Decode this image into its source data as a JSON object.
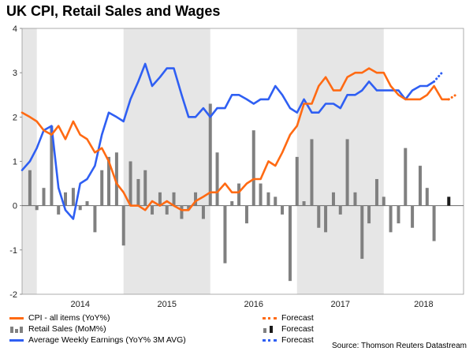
{
  "title": "UK CPI, Retail Sales and Wages",
  "source": "Source: Thomson Reuters Datastream",
  "legend": {
    "cpi": "CPI - all items (YoY%)",
    "retail": "Retail Sales (MoM%)",
    "awe": "Average Weekly Earnings (YoY% 3M AVG)",
    "forecast1": "Forecast",
    "forecast2": "Forecast",
    "forecast3": "Forecast"
  },
  "colors": {
    "cpi": "#ff6a13",
    "retail": "#808080",
    "retail_forecast": "#1a1a1a",
    "awe": "#2f5ff3",
    "shade": "#e6e6e6"
  },
  "chart_data": {
    "type": "line",
    "ylim": [
      -2,
      4
    ],
    "yticks": [
      -2,
      -1,
      0,
      1,
      2,
      3,
      4
    ],
    "x_range": [
      2013.83,
      2018.92
    ],
    "shaded_years": [
      [
        2013.83,
        2014.0
      ],
      [
        2015.0,
        2016.0
      ],
      [
        2017.0,
        2018.0
      ]
    ],
    "year_labels": [
      "2014",
      "2015",
      "2016",
      "2017",
      "2018"
    ],
    "series": [
      {
        "name": "CPI - all items (YoY%)",
        "x": [
          2013.83,
          2013.92,
          2014.0,
          2014.08,
          2014.17,
          2014.25,
          2014.33,
          2014.42,
          2014.5,
          2014.58,
          2014.67,
          2014.75,
          2014.83,
          2014.92,
          2015.0,
          2015.08,
          2015.17,
          2015.25,
          2015.33,
          2015.42,
          2015.5,
          2015.58,
          2015.67,
          2015.75,
          2015.83,
          2015.92,
          2016.0,
          2016.08,
          2016.17,
          2016.25,
          2016.33,
          2016.42,
          2016.5,
          2016.58,
          2016.67,
          2016.75,
          2016.83,
          2016.92,
          2017.0,
          2017.08,
          2017.17,
          2017.25,
          2017.33,
          2017.42,
          2017.5,
          2017.58,
          2017.67,
          2017.75,
          2017.83,
          2017.92,
          2018.0,
          2018.08,
          2018.17,
          2018.25,
          2018.33,
          2018.42,
          2018.5,
          2018.58,
          2018.67,
          2018.75
        ],
        "values": [
          2.1,
          2.0,
          1.9,
          1.7,
          1.6,
          1.8,
          1.5,
          1.9,
          1.6,
          1.5,
          1.2,
          1.3,
          1.0,
          0.5,
          0.3,
          0.0,
          0.0,
          -0.1,
          0.1,
          0.0,
          0.1,
          0.0,
          -0.1,
          -0.1,
          0.1,
          0.2,
          0.3,
          0.3,
          0.5,
          0.3,
          0.3,
          0.5,
          0.6,
          0.6,
          1.0,
          0.9,
          1.2,
          1.6,
          1.8,
          2.3,
          2.3,
          2.7,
          2.9,
          2.6,
          2.6,
          2.9,
          3.0,
          3.0,
          3.1,
          3.0,
          3.0,
          2.7,
          2.5,
          2.4,
          2.4,
          2.4,
          2.5,
          2.7,
          2.4,
          2.4
        ]
      },
      {
        "name": "CPI Forecast",
        "x": [
          2018.75,
          2018.83
        ],
        "values": [
          2.4,
          2.5
        ]
      },
      {
        "name": "Average Weekly Earnings (YoY% 3M AVG)",
        "x": [
          2013.83,
          2013.92,
          2014.0,
          2014.08,
          2014.17,
          2014.25,
          2014.33,
          2014.42,
          2014.5,
          2014.58,
          2014.67,
          2014.75,
          2014.83,
          2014.92,
          2015.0,
          2015.08,
          2015.17,
          2015.25,
          2015.33,
          2015.42,
          2015.5,
          2015.58,
          2015.67,
          2015.75,
          2015.83,
          2015.92,
          2016.0,
          2016.08,
          2016.17,
          2016.25,
          2016.33,
          2016.42,
          2016.5,
          2016.58,
          2016.67,
          2016.75,
          2016.83,
          2016.92,
          2017.0,
          2017.08,
          2017.17,
          2017.25,
          2017.33,
          2017.42,
          2017.5,
          2017.58,
          2017.67,
          2017.75,
          2017.83,
          2017.92,
          2018.0,
          2018.08,
          2018.17,
          2018.25,
          2018.33,
          2018.42,
          2018.5,
          2018.58
        ],
        "values": [
          0.8,
          1.0,
          1.3,
          1.7,
          1.8,
          0.4,
          -0.1,
          -0.3,
          0.5,
          0.6,
          0.9,
          1.6,
          2.1,
          2.0,
          1.9,
          2.4,
          2.8,
          3.2,
          2.7,
          2.9,
          3.1,
          3.1,
          2.5,
          2.0,
          2.0,
          2.2,
          2.0,
          2.2,
          2.2,
          2.5,
          2.5,
          2.4,
          2.3,
          2.4,
          2.4,
          2.7,
          2.5,
          2.2,
          2.1,
          2.4,
          2.1,
          2.1,
          2.3,
          2.3,
          2.2,
          2.5,
          2.5,
          2.6,
          2.8,
          2.6,
          2.6,
          2.6,
          2.6,
          2.4,
          2.6,
          2.7,
          2.7,
          2.8
        ]
      },
      {
        "name": "AWE Forecast",
        "x": [
          2018.58,
          2018.67
        ],
        "values": [
          2.8,
          3.0
        ]
      },
      {
        "name": "Retail Sales (MoM%)",
        "type": "bar",
        "x": [
          2013.92,
          2014.0,
          2014.08,
          2014.17,
          2014.25,
          2014.33,
          2014.42,
          2014.5,
          2014.58,
          2014.67,
          2014.75,
          2014.83,
          2014.92,
          2015.0,
          2015.08,
          2015.17,
          2015.25,
          2015.33,
          2015.42,
          2015.5,
          2015.58,
          2015.67,
          2015.75,
          2015.83,
          2015.92,
          2016.0,
          2016.08,
          2016.17,
          2016.25,
          2016.33,
          2016.42,
          2016.5,
          2016.58,
          2016.67,
          2016.75,
          2016.83,
          2016.92,
          2017.0,
          2017.08,
          2017.17,
          2017.25,
          2017.33,
          2017.42,
          2017.5,
          2017.58,
          2017.67,
          2017.75,
          2017.83,
          2017.92,
          2018.0,
          2018.08,
          2018.17,
          2018.25,
          2018.33,
          2018.42,
          2018.5,
          2018.58
        ],
        "values": [
          0.8,
          -0.1,
          0.4,
          1.8,
          -0.2,
          0.3,
          0.4,
          -0.1,
          0.1,
          -0.6,
          0.8,
          1.1,
          1.2,
          -0.9,
          1.0,
          0.6,
          0.8,
          -0.2,
          0.3,
          -0.2,
          0.3,
          -0.3,
          -0.1,
          0.3,
          -0.3,
          2.3,
          1.2,
          -1.3,
          0.1,
          0.5,
          -0.4,
          1.7,
          0.5,
          0.3,
          0.2,
          -0.2,
          -1.7,
          1.1,
          0.1,
          1.5,
          -0.5,
          -0.6,
          0.3,
          -0.2,
          1.5,
          0.3,
          -1.2,
          -0.4,
          0.6,
          0.2,
          -0.6,
          -0.4,
          1.3,
          -0.5,
          0.9,
          0.4,
          -0.8
        ]
      },
      {
        "name": "Retail Sales Forecast",
        "type": "bar",
        "x": [
          2018.75
        ],
        "values": [
          0.2
        ]
      }
    ]
  }
}
